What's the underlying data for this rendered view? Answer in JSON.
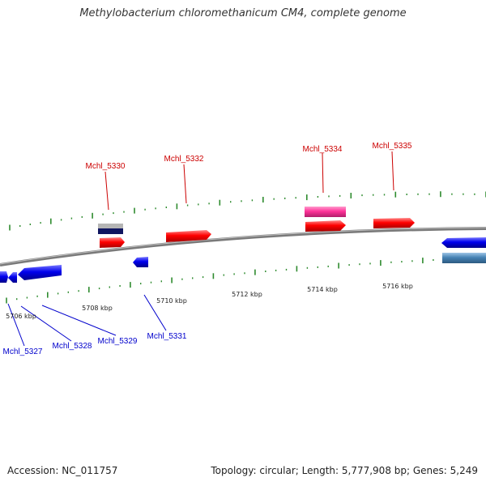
{
  "title": "Methylobacterium chloromethanicum CM4, complete genome",
  "footer": {
    "accession": "Accession: NC_011757",
    "summary": "Topology: circular; Length: 5,777,908 bp; Genes: 5,249"
  },
  "colors": {
    "plus_label": "#cc0000",
    "minus_label": "#0000cc",
    "cds": "#ff0000",
    "pink": "#ff3399",
    "blue": "#0000ee",
    "steel": "#4682b4",
    "ticks": "#2e8b2e",
    "backbone": "#7a7a7a"
  },
  "scale_labels": [
    "5706 kbp",
    "5708 kbp",
    "5710 kbp",
    "5712 kbp",
    "5714 kbp",
    "5716 kbp"
  ],
  "plus_genes": [
    "Mchl_5330",
    "Mchl_5332",
    "Mchl_5334",
    "Mchl_5335"
  ],
  "minus_genes": [
    "Mchl_5327",
    "Mchl_5328",
    "Mchl_5329",
    "Mchl_5331"
  ]
}
